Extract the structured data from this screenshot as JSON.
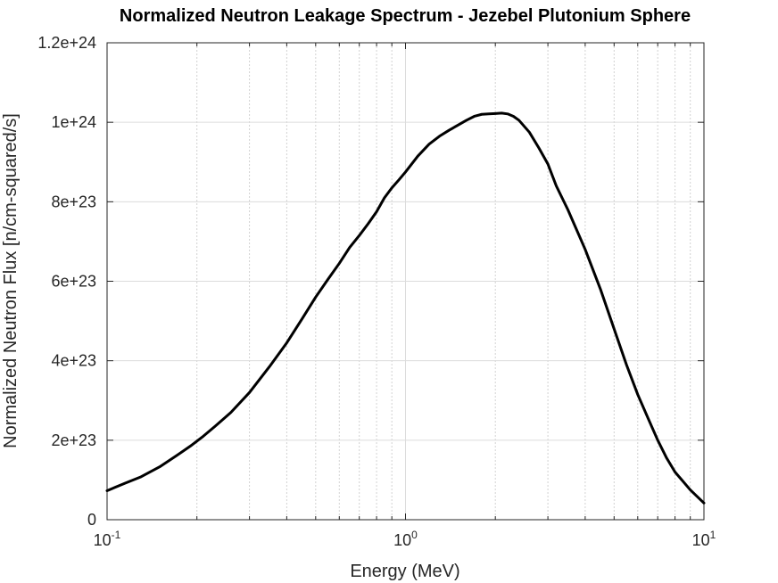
{
  "chart_data": {
    "type": "line",
    "title": "Normalized Neutron Leakage Spectrum - Jezebel Plutonium Sphere",
    "xlabel": "Energy (MeV)",
    "ylabel": "Normalized Neutron Flux [n/cm-squared/s]",
    "xscale": "log",
    "xlim": [
      0.1,
      10
    ],
    "ylim": [
      0,
      1.2e+24
    ],
    "grid": true,
    "x_ticks": [
      {
        "base": "10",
        "exp": "-1",
        "value": 0.1
      },
      {
        "base": "10",
        "exp": "0",
        "value": 1
      },
      {
        "base": "10",
        "exp": "1",
        "value": 10
      }
    ],
    "y_ticks": [
      {
        "label": "0",
        "value": 0
      },
      {
        "label": "2e+23",
        "value": 2e+23
      },
      {
        "label": "4e+23",
        "value": 4e+23
      },
      {
        "label": "6e+23",
        "value": 6e+23
      },
      {
        "label": "8e+23",
        "value": 8e+23
      },
      {
        "label": "1e+24",
        "value": 1e+24
      },
      {
        "label": "1.2e+24",
        "value": 1.2e+24
      }
    ],
    "line_color": "#000000",
    "series": [
      {
        "x": [
          0.1,
          0.115,
          0.13,
          0.15,
          0.17,
          0.19,
          0.21,
          0.23,
          0.26,
          0.3,
          0.35,
          0.4,
          0.45,
          0.5,
          0.55,
          0.6,
          0.65,
          0.7,
          0.75,
          0.8,
          0.85,
          0.9,
          0.95,
          1.0,
          1.1,
          1.2,
          1.3,
          1.4,
          1.5,
          1.6,
          1.7,
          1.8,
          1.9,
          2.0,
          2.1,
          2.2,
          2.3,
          2.4,
          2.6,
          2.8,
          3.0,
          3.2,
          3.5,
          4.0,
          4.5,
          5.0,
          5.5,
          6.0,
          6.5,
          7.0,
          7.5,
          8.0,
          9.0,
          10.0
        ],
        "y": [
          7.3e+22,
          9.2e+22,
          1.08e+23,
          1.33e+23,
          1.6e+23,
          1.85e+23,
          2.1e+23,
          2.35e+23,
          2.7e+23,
          3.2e+23,
          3.85e+23,
          4.45e+23,
          5.05e+23,
          5.6e+23,
          6.05e+23,
          6.45e+23,
          6.85e+23,
          7.15e+23,
          7.45e+23,
          7.75e+23,
          8.1e+23,
          8.35e+23,
          8.55e+23,
          8.75e+23,
          9.15e+23,
          9.45e+23,
          9.65e+23,
          9.8e+23,
          9.93e+23,
          1.005e+24,
          1.015e+24,
          1.02e+24,
          1.021e+24,
          1.022e+24,
          1.023e+24,
          1.021e+24,
          1.015e+24,
          1.005e+24,
          9.75e+23,
          9.35e+23,
          8.95e+23,
          8.4e+23,
          7.8e+23,
          6.8e+23,
          5.8e+23,
          4.8e+23,
          3.9e+23,
          3.15e+23,
          2.55e+23,
          2e+23,
          1.55e+23,
          1.2e+23,
          7.5e+22,
          4.2e+22
        ]
      }
    ]
  }
}
